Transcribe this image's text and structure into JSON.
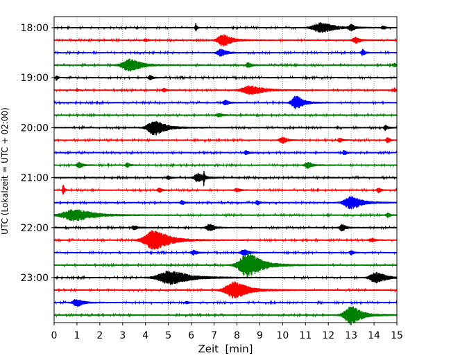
{
  "chart_data": {
    "type": "line",
    "title": "",
    "xlabel": "Zeit  [min]",
    "ylabel": "UTC (Lokalzeit = UTC + 02:00)",
    "xlim": [
      0,
      15
    ],
    "x_ticks": [
      0,
      1,
      2,
      3,
      4,
      5,
      6,
      7,
      8,
      9,
      10,
      11,
      12,
      13,
      14,
      15
    ],
    "y_ticks": [
      "18:00",
      "19:00",
      "20:00",
      "21:00",
      "22:00",
      "23:00"
    ],
    "y_tick_rows": [
      0,
      4,
      8,
      12,
      16,
      20
    ],
    "grid": "vertical dotted at each minute",
    "trace_colors": [
      "#000000",
      "#ff0000",
      "#0000ff",
      "#008000"
    ],
    "traces": [
      {
        "start": "18:00",
        "events": [
          [
            6.2,
            0.55,
            0.08
          ],
          [
            11.7,
            0.65,
            1.1
          ],
          [
            13.0,
            0.35,
            0.3
          ],
          [
            14.4,
            0.2,
            0.2
          ]
        ]
      },
      {
        "start": "18:15",
        "events": [
          [
            4.0,
            0.2,
            0.2
          ],
          [
            7.4,
            0.8,
            0.7
          ],
          [
            13.2,
            0.4,
            0.4
          ]
        ]
      },
      {
        "start": "18:30",
        "events": [
          [
            7.3,
            0.45,
            0.5
          ],
          [
            13.5,
            0.4,
            0.2
          ]
        ]
      },
      {
        "start": "18:45",
        "events": [
          [
            3.3,
            0.8,
            1.0
          ],
          [
            8.5,
            0.3,
            0.3
          ],
          [
            14.9,
            0.35,
            0.1
          ]
        ]
      },
      {
        "start": "19:00",
        "events": [
          [
            0.1,
            0.35,
            0.1
          ],
          [
            4.2,
            0.3,
            0.2
          ]
        ]
      },
      {
        "start": "19:15",
        "events": [
          [
            1.0,
            0.2,
            0.1
          ],
          [
            4.8,
            0.25,
            0.2
          ],
          [
            8.6,
            0.55,
            1.2
          ],
          [
            14.9,
            0.3,
            0.1
          ]
        ]
      },
      {
        "start": "19:30",
        "events": [
          [
            7.5,
            0.3,
            0.3
          ],
          [
            10.6,
            0.9,
            0.6
          ]
        ]
      },
      {
        "start": "19:45",
        "events": [
          [
            7.2,
            0.25,
            0.3
          ]
        ]
      },
      {
        "start": "20:00",
        "events": [
          [
            4.4,
            1.0,
            0.9
          ],
          [
            14.5,
            0.35,
            0.2
          ]
        ]
      },
      {
        "start": "20:15",
        "events": [
          [
            10.0,
            0.4,
            0.4
          ],
          [
            12.5,
            0.3,
            0.2
          ],
          [
            14.6,
            0.35,
            0.2
          ]
        ]
      },
      {
        "start": "20:30",
        "events": [
          [
            8.4,
            0.3,
            0.2
          ],
          [
            12.7,
            0.3,
            0.2
          ]
        ]
      },
      {
        "start": "20:45",
        "events": [
          [
            1.1,
            0.35,
            0.3
          ],
          [
            3.2,
            0.3,
            0.2
          ],
          [
            11.1,
            0.4,
            0.4
          ]
        ]
      },
      {
        "start": "21:00",
        "events": [
          [
            5.0,
            0.25,
            0.2
          ],
          [
            6.3,
            0.55,
            0.5
          ],
          [
            6.55,
            0.9,
            0.05
          ]
        ]
      },
      {
        "start": "21:15",
        "events": [
          [
            0.4,
            0.7,
            0.1
          ],
          [
            4.6,
            0.3,
            0.2
          ],
          [
            8.0,
            0.2,
            0.3
          ],
          [
            14.2,
            0.3,
            0.2
          ]
        ]
      },
      {
        "start": "21:30",
        "events": [
          [
            5.6,
            0.3,
            0.2
          ],
          [
            8.9,
            0.3,
            0.2
          ],
          [
            13.0,
            0.85,
            0.9
          ]
        ]
      },
      {
        "start": "21:45",
        "events": [
          [
            0.9,
            0.75,
            1.6
          ],
          [
            14.6,
            0.3,
            0.2
          ]
        ]
      },
      {
        "start": "22:00",
        "events": [
          [
            3.5,
            0.25,
            0.3
          ],
          [
            6.8,
            0.5,
            0.4
          ],
          [
            12.6,
            0.45,
            0.3
          ]
        ]
      },
      {
        "start": "22:15",
        "events": [
          [
            4.4,
            1.3,
            1.3
          ],
          [
            13.9,
            0.25,
            0.3
          ]
        ]
      },
      {
        "start": "22:30",
        "events": [
          [
            6.1,
            0.3,
            0.3
          ],
          [
            8.3,
            0.4,
            0.4
          ],
          [
            13.0,
            0.3,
            0.2
          ]
        ]
      },
      {
        "start": "22:45",
        "events": [
          [
            8.5,
            1.6,
            1.2
          ]
        ]
      },
      {
        "start": "23:00",
        "events": [
          [
            5.1,
            0.9,
            1.6
          ],
          [
            14.1,
            0.7,
            0.8
          ]
        ]
      },
      {
        "start": "23:15",
        "events": [
          [
            7.9,
            1.1,
            1.2
          ]
        ]
      },
      {
        "start": "23:30",
        "events": [
          [
            1.0,
            0.5,
            0.5
          ],
          [
            5.8,
            0.15,
            0.2
          ]
        ]
      },
      {
        "start": "23:45",
        "events": [
          [
            13.0,
            1.2,
            0.9
          ]
        ]
      }
    ]
  }
}
